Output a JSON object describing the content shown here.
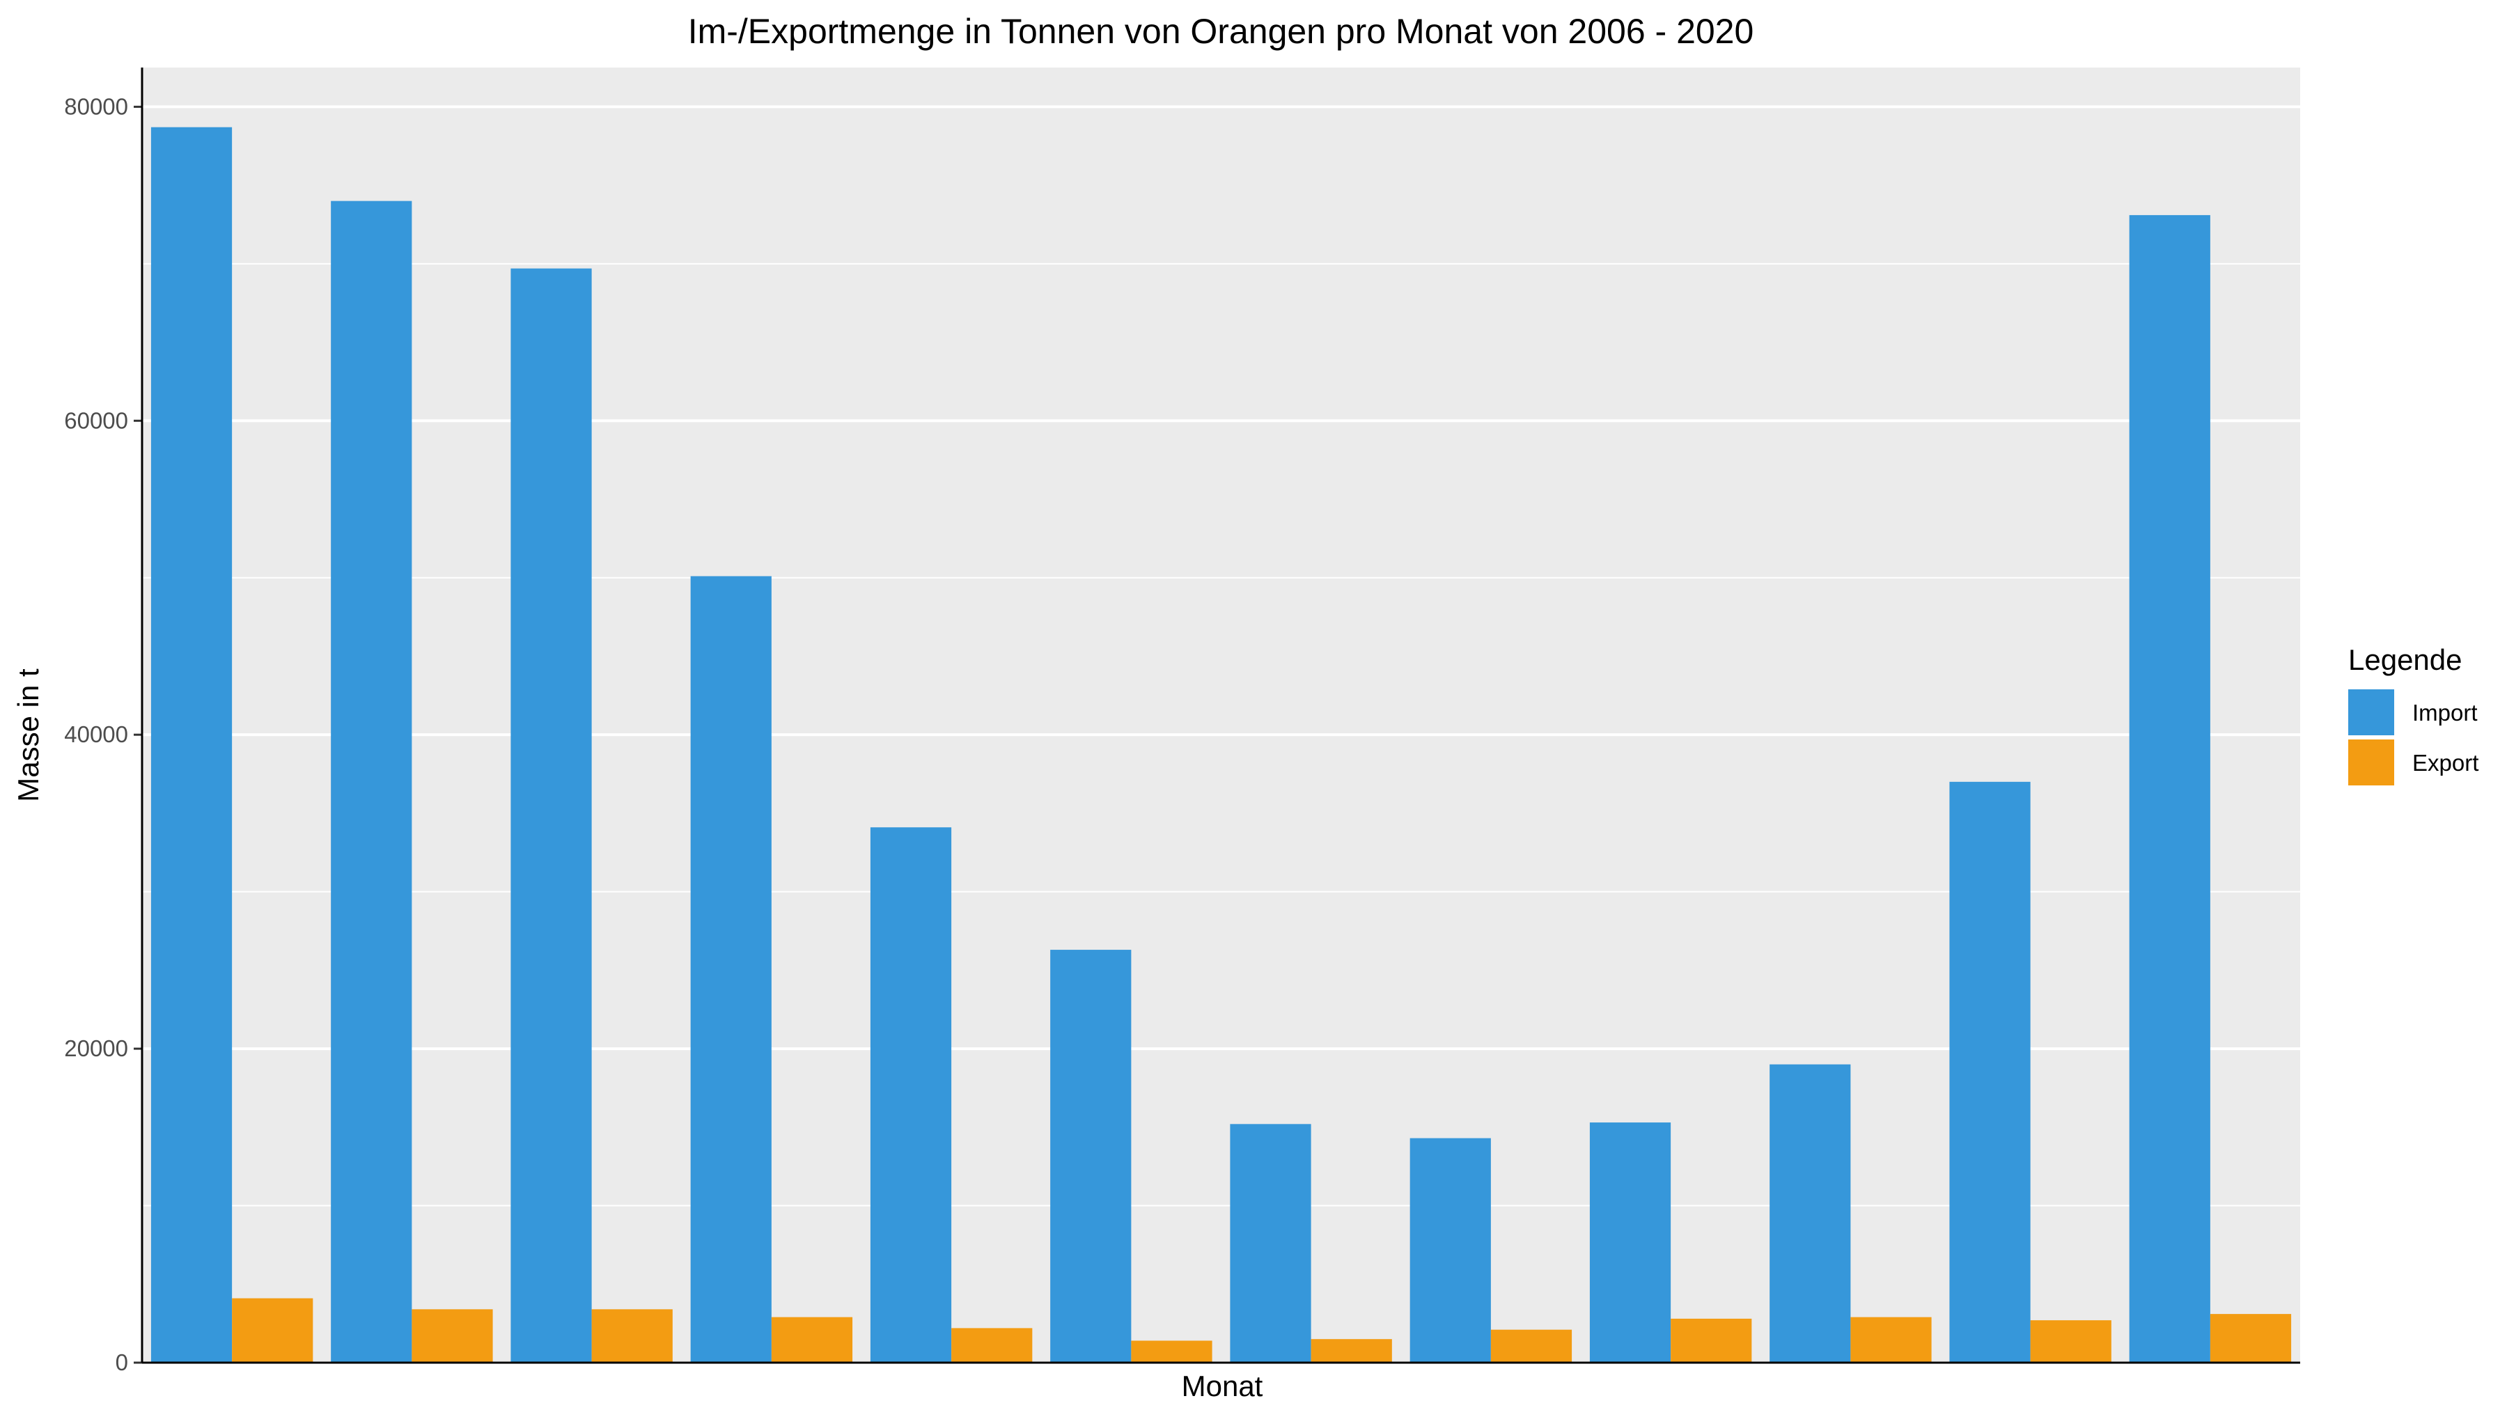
{
  "chart_data": {
    "type": "bar",
    "title": "Im-/Exportmenge in Tonnen von Orangen pro Monat von 2006 - 2020",
    "xlabel": "Monat",
    "ylabel": "Masse in t",
    "ylim": [
      0,
      82500
    ],
    "yticks": [
      0,
      20000,
      40000,
      60000,
      80000
    ],
    "ytick_labels": [
      "0",
      "20000",
      "40000",
      "60000",
      "80000"
    ],
    "grid": true,
    "legend": {
      "title": "Legende",
      "position": "right"
    },
    "series": [
      {
        "name": "Import",
        "color": "#3697da",
        "values": [
          78700,
          74000,
          69700,
          50100,
          34100,
          26300,
          15200,
          14300,
          15300,
          19000,
          37000,
          73100
        ]
      },
      {
        "name": "Export",
        "color": "#f39c12",
        "values": [
          4100,
          3400,
          3400,
          2900,
          2200,
          1400,
          1500,
          2100,
          2800,
          2900,
          2700,
          3100
        ]
      }
    ]
  }
}
